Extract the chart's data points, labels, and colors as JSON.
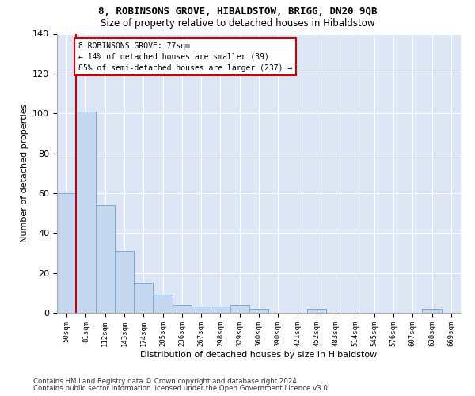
{
  "title1": "8, ROBINSONS GROVE, HIBALDSTOW, BRIGG, DN20 9QB",
  "title2": "Size of property relative to detached houses in Hibaldstow",
  "xlabel": "Distribution of detached houses by size in Hibaldstow",
  "ylabel": "Number of detached properties",
  "bar_labels": [
    "50sqm",
    "81sqm",
    "112sqm",
    "143sqm",
    "174sqm",
    "205sqm",
    "236sqm",
    "267sqm",
    "298sqm",
    "329sqm",
    "360sqm",
    "390sqm",
    "421sqm",
    "452sqm",
    "483sqm",
    "514sqm",
    "545sqm",
    "576sqm",
    "607sqm",
    "638sqm",
    "669sqm"
  ],
  "bar_values": [
    60,
    101,
    54,
    31,
    15,
    9,
    4,
    3,
    3,
    4,
    2,
    0,
    0,
    2,
    0,
    0,
    0,
    0,
    0,
    2,
    0
  ],
  "bar_color": "#c5d8f0",
  "bar_edge_color": "#7aadd4",
  "background_color": "#dce6f5",
  "vline_color": "#cc0000",
  "box_edge_color": "#cc0000",
  "annotation_line1": "8 ROBINSONS GROVE: 77sqm",
  "annotation_line2": "← 14% of detached houses are smaller (39)",
  "annotation_line3": "85% of semi-detached houses are larger (237) →",
  "ylim": [
    0,
    140
  ],
  "yticks": [
    0,
    20,
    40,
    60,
    80,
    100,
    120,
    140
  ],
  "footer1": "Contains HM Land Registry data © Crown copyright and database right 2024.",
  "footer2": "Contains public sector information licensed under the Open Government Licence v3.0."
}
